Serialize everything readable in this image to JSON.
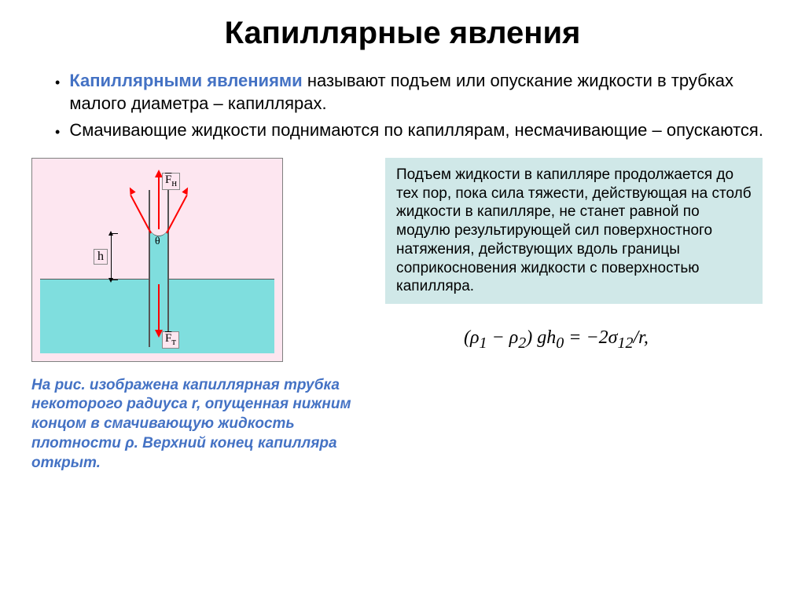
{
  "title": "Капиллярные явления",
  "bullets": {
    "b1_term": "Капиллярными явлениями",
    "b1_rest": " называют подъем или опускание жидкости в трубках малого диаметра – капиллярах.",
    "b2": "Смачивающие жидкости поднимаются по капиллярам, несмачивающие – опускаются."
  },
  "infobox": "Подъем жидкости в капилляре продолжается до тех пор, пока сила тяжести, действующая на столб жидкости в капилляре, не станет равной по модулю результирующей сил поверхностного натяжения, действующих вдоль границы соприкосновения жидкости с поверхностью капилляра.",
  "formula": "(ρ₁ − ρ₂) gh₀ = −2σ₁₂/r,",
  "caption": "На рис. изображена капиллярная трубка некоторого радиуса r, опущенная нижним концом в смачивающую жидкость плотности ρ. Верхний конец капилляра открыт.",
  "diagram": {
    "h_label": "h",
    "theta_label": "θ",
    "fn_label": "F⃗ₙ",
    "ft_label": "F⃗ₜ",
    "colors": {
      "bg": "#fde6f0",
      "liquid": "#7fdede",
      "arrow": "#ff0000",
      "tube": "#555555"
    }
  },
  "colors": {
    "term": "#4472c4",
    "infobox_bg": "#d0e8e8"
  }
}
